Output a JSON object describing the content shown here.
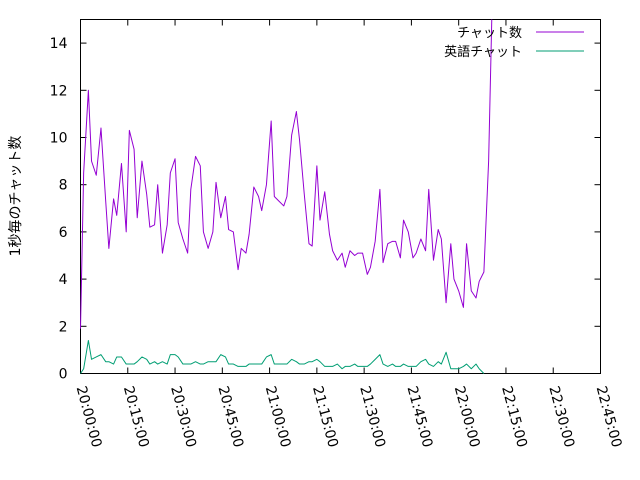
{
  "chart_data": {
    "type": "line",
    "ylabel": "1秒毎のチャット数",
    "ylim": [
      0,
      15
    ],
    "yticks": [
      0,
      2,
      4,
      6,
      8,
      10,
      12,
      14
    ],
    "xlim": [
      "20:00:00",
      "22:45:00"
    ],
    "xticks": [
      "20:00:00",
      "20:15:00",
      "20:30:00",
      "20:45:00",
      "21:00:00",
      "21:15:00",
      "21:30:00",
      "21:45:00",
      "22:00:00",
      "22:15:00",
      "22:30:00",
      "22:45:00"
    ],
    "grid": false,
    "legend_position": "top-right",
    "series": [
      {
        "name": "チャット数",
        "color": "#9400d3",
        "points": [
          [
            "20:00:00",
            1.9
          ],
          [
            "20:01:00",
            8.5
          ],
          [
            "20:02:30",
            12.0
          ],
          [
            "20:03:30",
            9.0
          ],
          [
            "20:05:00",
            8.4
          ],
          [
            "20:06:30",
            10.4
          ],
          [
            "20:08:00",
            7.3
          ],
          [
            "20:09:00",
            5.3
          ],
          [
            "20:10:30",
            7.4
          ],
          [
            "20:11:30",
            6.7
          ],
          [
            "20:13:00",
            8.9
          ],
          [
            "20:14:30",
            6.0
          ],
          [
            "20:15:30",
            10.3
          ],
          [
            "20:17:00",
            9.5
          ],
          [
            "20:18:00",
            6.6
          ],
          [
            "20:19:30",
            9.0
          ],
          [
            "20:21:00",
            7.6
          ],
          [
            "20:22:00",
            6.2
          ],
          [
            "20:23:30",
            6.3
          ],
          [
            "20:24:30",
            8.0
          ],
          [
            "20:26:00",
            5.1
          ],
          [
            "20:27:30",
            6.3
          ],
          [
            "20:28:30",
            8.5
          ],
          [
            "20:30:00",
            9.1
          ],
          [
            "20:31:00",
            6.4
          ],
          [
            "20:32:30",
            5.7
          ],
          [
            "20:34:00",
            5.1
          ],
          [
            "20:35:00",
            7.8
          ],
          [
            "20:36:30",
            9.2
          ],
          [
            "20:38:00",
            8.8
          ],
          [
            "20:39:00",
            6.0
          ],
          [
            "20:40:30",
            5.3
          ],
          [
            "20:42:00",
            6.0
          ],
          [
            "20:43:00",
            8.1
          ],
          [
            "20:44:30",
            6.6
          ],
          [
            "20:46:00",
            7.5
          ],
          [
            "20:47:00",
            6.1
          ],
          [
            "20:48:30",
            6.0
          ],
          [
            "20:50:00",
            4.4
          ],
          [
            "20:51:00",
            5.3
          ],
          [
            "20:52:30",
            5.1
          ],
          [
            "20:53:30",
            5.9
          ],
          [
            "20:55:00",
            7.9
          ],
          [
            "20:56:30",
            7.5
          ],
          [
            "20:57:30",
            6.9
          ],
          [
            "20:59:00",
            8.0
          ],
          [
            "21:00:30",
            10.7
          ],
          [
            "21:01:30",
            7.5
          ],
          [
            "21:03:00",
            7.3
          ],
          [
            "21:04:30",
            7.1
          ],
          [
            "21:05:30",
            7.5
          ],
          [
            "21:07:00",
            10.1
          ],
          [
            "21:08:30",
            11.1
          ],
          [
            "21:09:30",
            9.9
          ],
          [
            "21:11:00",
            7.6
          ],
          [
            "21:12:30",
            5.5
          ],
          [
            "21:13:30",
            5.4
          ],
          [
            "21:15:00",
            8.8
          ],
          [
            "21:16:00",
            6.5
          ],
          [
            "21:17:30",
            7.7
          ],
          [
            "21:19:00",
            5.9
          ],
          [
            "21:20:00",
            5.2
          ],
          [
            "21:21:30",
            4.8
          ],
          [
            "21:23:00",
            5.1
          ],
          [
            "21:24:00",
            4.5
          ],
          [
            "21:25:30",
            5.2
          ],
          [
            "21:27:00",
            5.0
          ],
          [
            "21:28:00",
            5.1
          ],
          [
            "21:29:30",
            5.1
          ],
          [
            "21:31:00",
            4.2
          ],
          [
            "21:32:00",
            4.5
          ],
          [
            "21:33:30",
            5.6
          ],
          [
            "21:35:00",
            7.8
          ],
          [
            "21:36:00",
            4.7
          ],
          [
            "21:37:30",
            5.5
          ],
          [
            "21:39:00",
            5.6
          ],
          [
            "21:40:00",
            5.6
          ],
          [
            "21:41:30",
            4.9
          ],
          [
            "21:42:30",
            6.5
          ],
          [
            "21:44:00",
            6.0
          ],
          [
            "21:45:30",
            4.9
          ],
          [
            "21:46:30",
            5.1
          ],
          [
            "21:48:00",
            5.7
          ],
          [
            "21:49:30",
            5.2
          ],
          [
            "21:50:30",
            7.8
          ],
          [
            "21:52:00",
            4.8
          ],
          [
            "21:53:30",
            6.1
          ],
          [
            "21:54:30",
            5.7
          ],
          [
            "21:56:00",
            3.0
          ],
          [
            "21:57:30",
            5.5
          ],
          [
            "21:58:30",
            4.0
          ],
          [
            "22:00:00",
            3.5
          ],
          [
            "22:01:30",
            2.8
          ],
          [
            "22:02:30",
            5.5
          ],
          [
            "22:04:00",
            3.5
          ],
          [
            "22:05:30",
            3.2
          ],
          [
            "22:06:30",
            3.9
          ],
          [
            "22:08:00",
            4.3
          ],
          [
            "22:09:30",
            9.0
          ],
          [
            "22:10:30",
            15.0
          ]
        ]
      },
      {
        "name": "英語チャット",
        "color": "#009e73",
        "points": [
          [
            "20:00:00",
            0.0
          ],
          [
            "20:01:00",
            0.2
          ],
          [
            "20:02:30",
            1.4
          ],
          [
            "20:03:30",
            0.6
          ],
          [
            "20:05:00",
            0.7
          ],
          [
            "20:06:30",
            0.8
          ],
          [
            "20:08:00",
            0.5
          ],
          [
            "20:09:00",
            0.5
          ],
          [
            "20:10:30",
            0.4
          ],
          [
            "20:11:30",
            0.7
          ],
          [
            "20:13:00",
            0.7
          ],
          [
            "20:14:30",
            0.4
          ],
          [
            "20:15:30",
            0.4
          ],
          [
            "20:17:00",
            0.4
          ],
          [
            "20:18:00",
            0.5
          ],
          [
            "20:19:30",
            0.7
          ],
          [
            "20:21:00",
            0.6
          ],
          [
            "20:22:00",
            0.4
          ],
          [
            "20:23:30",
            0.5
          ],
          [
            "20:24:30",
            0.4
          ],
          [
            "20:26:00",
            0.5
          ],
          [
            "20:27:30",
            0.4
          ],
          [
            "20:28:30",
            0.8
          ],
          [
            "20:30:00",
            0.8
          ],
          [
            "20:31:00",
            0.7
          ],
          [
            "20:32:30",
            0.4
          ],
          [
            "20:34:00",
            0.4
          ],
          [
            "20:35:00",
            0.4
          ],
          [
            "20:36:30",
            0.5
          ],
          [
            "20:38:00",
            0.4
          ],
          [
            "20:39:00",
            0.4
          ],
          [
            "20:40:30",
            0.5
          ],
          [
            "20:42:00",
            0.5
          ],
          [
            "20:43:00",
            0.5
          ],
          [
            "20:44:30",
            0.8
          ],
          [
            "20:46:00",
            0.7
          ],
          [
            "20:47:00",
            0.4
          ],
          [
            "20:48:30",
            0.4
          ],
          [
            "20:50:00",
            0.3
          ],
          [
            "20:51:00",
            0.3
          ],
          [
            "20:52:30",
            0.3
          ],
          [
            "20:53:30",
            0.4
          ],
          [
            "20:55:00",
            0.4
          ],
          [
            "20:56:30",
            0.4
          ],
          [
            "20:57:30",
            0.4
          ],
          [
            "20:59:00",
            0.7
          ],
          [
            "21:00:30",
            0.8
          ],
          [
            "21:01:30",
            0.4
          ],
          [
            "21:03:00",
            0.4
          ],
          [
            "21:04:30",
            0.4
          ],
          [
            "21:05:30",
            0.4
          ],
          [
            "21:07:00",
            0.6
          ],
          [
            "21:08:30",
            0.5
          ],
          [
            "21:09:30",
            0.4
          ],
          [
            "21:11:00",
            0.4
          ],
          [
            "21:12:30",
            0.5
          ],
          [
            "21:13:30",
            0.5
          ],
          [
            "21:15:00",
            0.6
          ],
          [
            "21:16:00",
            0.5
          ],
          [
            "21:17:30",
            0.3
          ],
          [
            "21:19:00",
            0.3
          ],
          [
            "21:20:00",
            0.3
          ],
          [
            "21:21:30",
            0.4
          ],
          [
            "21:23:00",
            0.2
          ],
          [
            "21:24:00",
            0.3
          ],
          [
            "21:25:30",
            0.3
          ],
          [
            "21:27:00",
            0.4
          ],
          [
            "21:28:00",
            0.3
          ],
          [
            "21:29:30",
            0.3
          ],
          [
            "21:31:00",
            0.3
          ],
          [
            "21:32:00",
            0.4
          ],
          [
            "21:33:30",
            0.6
          ],
          [
            "21:35:00",
            0.8
          ],
          [
            "21:36:00",
            0.4
          ],
          [
            "21:37:30",
            0.3
          ],
          [
            "21:39:00",
            0.4
          ],
          [
            "21:40:00",
            0.3
          ],
          [
            "21:41:30",
            0.3
          ],
          [
            "21:42:30",
            0.4
          ],
          [
            "21:44:00",
            0.3
          ],
          [
            "21:45:30",
            0.3
          ],
          [
            "21:46:30",
            0.3
          ],
          [
            "21:48:00",
            0.5
          ],
          [
            "21:49:30",
            0.6
          ],
          [
            "21:50:30",
            0.4
          ],
          [
            "21:52:00",
            0.3
          ],
          [
            "21:53:30",
            0.5
          ],
          [
            "21:54:30",
            0.4
          ],
          [
            "21:56:00",
            0.9
          ],
          [
            "21:57:30",
            0.2
          ],
          [
            "21:58:30",
            0.2
          ],
          [
            "22:00:00",
            0.2
          ],
          [
            "22:01:30",
            0.3
          ],
          [
            "22:02:30",
            0.4
          ],
          [
            "22:04:00",
            0.2
          ],
          [
            "22:05:30",
            0.4
          ],
          [
            "22:06:30",
            0.2
          ],
          [
            "22:08:00",
            0.0
          ]
        ]
      }
    ]
  }
}
